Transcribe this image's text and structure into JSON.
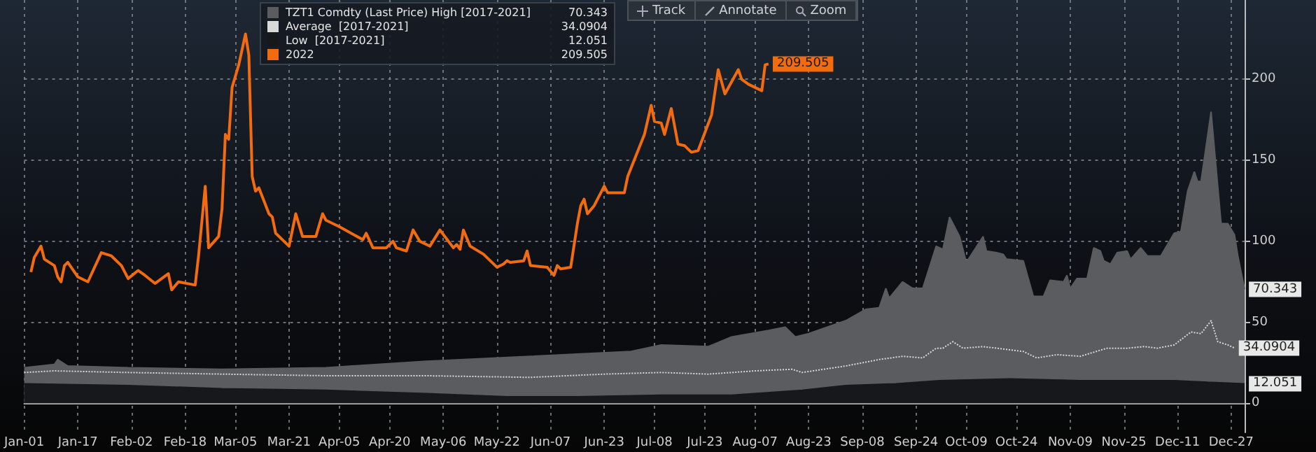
{
  "chart_data": {
    "type": "area",
    "annotations": [
      "Track",
      "Annotate",
      "Zoom"
    ],
    "xlim": [
      "--01-01",
      "--12-31"
    ],
    "xticks": [
      {
        "value": "--01-01",
        "label": "Jan-01"
      },
      {
        "value": "--01-17",
        "label": "Jan-17"
      },
      {
        "value": "--02-02",
        "label": "Feb-02"
      },
      {
        "value": "--02-18",
        "label": "Feb-18"
      },
      {
        "value": "--03-05",
        "label": "Mar-05"
      },
      {
        "value": "--03-21",
        "label": "Mar-21"
      },
      {
        "value": "--04-05",
        "label": "Apr-05"
      },
      {
        "value": "--04-20",
        "label": "Apr-20"
      },
      {
        "value": "--05-06",
        "label": "May-06"
      },
      {
        "value": "--05-22",
        "label": "May-22"
      },
      {
        "value": "--06-07",
        "label": "Jun-07"
      },
      {
        "value": "--06-23",
        "label": "Jun-23"
      },
      {
        "value": "--07-08",
        "label": "Jul-08"
      },
      {
        "value": "--07-23",
        "label": "Jul-23"
      },
      {
        "value": "--08-07",
        "label": "Aug-07"
      },
      {
        "value": "--08-23",
        "label": "Aug-23"
      },
      {
        "value": "--09-08",
        "label": "Sep-08"
      },
      {
        "value": "--09-24",
        "label": "Sep-24"
      },
      {
        "value": "--10-09",
        "label": "Oct-09"
      },
      {
        "value": "--10-24",
        "label": "Oct-24"
      },
      {
        "value": "--11-09",
        "label": "Nov-09"
      },
      {
        "value": "--11-25",
        "label": "Nov-25"
      },
      {
        "value": "--12-11",
        "label": "Dec-11"
      },
      {
        "value": "--12-27",
        "label": "Dec-27"
      }
    ],
    "ylim": [
      -18,
      249
    ],
    "yticks": [
      0,
      50,
      100,
      150,
      200
    ],
    "grid": true,
    "legend": "top left",
    "series": [
      {
        "name": "TZT1 Comdty (Last Price) High [2017-2021]",
        "color": "#5a5c5f",
        "x": [
          "--01-01",
          "--01-10",
          "--01-11",
          "--01-14",
          "--02-01",
          "--03-01",
          "--04-01",
          "--05-01",
          "--06-01",
          "--07-01",
          "--07-10",
          "--07-24",
          "--07-31",
          "--08-11",
          "--08-16",
          "--08-19",
          "--08-23",
          "--09-03",
          "--09-09",
          "--09-13",
          "--09-15",
          "--09-16",
          "--09-20",
          "--09-23",
          "--09-26",
          "--09-30",
          "--10-02",
          "--10-04",
          "--10-07",
          "--10-09",
          "--10-14",
          "--10-15",
          "--10-18",
          "--10-20",
          "--10-21",
          "--10-26",
          "--10-29",
          "--11-01",
          "--11-03",
          "--11-07",
          "--11-08",
          "--11-09",
          "--11-11",
          "--11-14",
          "--11-16",
          "--11-18",
          "--11-19",
          "--11-21",
          "--11-23",
          "--11-26",
          "--11-27",
          "--11-30",
          "--12-02",
          "--12-06",
          "--12-10",
          "--12-12",
          "--12-14",
          "--12-16",
          "--12-17",
          "--12-18",
          "--12-21",
          "--12-23",
          "--12-24",
          "--12-26",
          "--12-28",
          "--12-29",
          "--12-31"
        ],
        "values": [
          22,
          24,
          27,
          23,
          22,
          21,
          22,
          26,
          29,
          32,
          36,
          35,
          41,
          45,
          47,
          41,
          43,
          51,
          58,
          59,
          71,
          65,
          75,
          71,
          71,
          97,
          95,
          115,
          103,
          87,
          103,
          94,
          93,
          92,
          89,
          88,
          66,
          66,
          76,
          75,
          79,
          71,
          77,
          77,
          96,
          94,
          88,
          86,
          93,
          94,
          89,
          96,
          91,
          91,
          105,
          106,
          131,
          143,
          137,
          137,
          180,
          134,
          111,
          111,
          104,
          91,
          70.343
        ],
        "value_labels": [
          null,
          null,
          null,
          null,
          null,
          null,
          null,
          null,
          null,
          null,
          null,
          null,
          null,
          null,
          null,
          null,
          null,
          null,
          null,
          null,
          null,
          null,
          null,
          null,
          null,
          null,
          null,
          null,
          null,
          null,
          null,
          null,
          null,
          null,
          null,
          null,
          null,
          null,
          null,
          null,
          null,
          null,
          null,
          null,
          null,
          null,
          null,
          null,
          null,
          null,
          null,
          null,
          null,
          null,
          null,
          null,
          null,
          null,
          null,
          null,
          null,
          null,
          null,
          null,
          null,
          null,
          "70.343"
        ]
      },
      {
        "name": "Average  [2017-2021]",
        "type": "line",
        "line_style": "dotted",
        "color": "#d9d9d9",
        "x": [
          "--01-01",
          "--01-10",
          "--02-01",
          "--03-01",
          "--04-01",
          "--05-01",
          "--06-01",
          "--06-23",
          "--07-10",
          "--07-24",
          "--08-07",
          "--08-18",
          "--08-21",
          "--09-03",
          "--09-13",
          "--09-20",
          "--09-26",
          "--09-30",
          "--10-02",
          "--10-05",
          "--10-08",
          "--10-14",
          "--10-18",
          "--10-26",
          "--10-30",
          "--11-05",
          "--11-12",
          "--11-20",
          "--11-26",
          "--12-01",
          "--12-05",
          "--12-10",
          "--12-15",
          "--12-18",
          "--12-21",
          "--12-23",
          "--12-26",
          "--12-28"
        ],
        "values": [
          19,
          20,
          19,
          18,
          17,
          17,
          16,
          18,
          19,
          18,
          20,
          21,
          19,
          23,
          27,
          29,
          28,
          34,
          34,
          38,
          34,
          35,
          34,
          32,
          28,
          30,
          29,
          34,
          34,
          35,
          34,
          36,
          44,
          43,
          51,
          38,
          36,
          34.0904
        ],
        "value_labels": [
          null,
          null,
          null,
          null,
          null,
          null,
          null,
          null,
          null,
          null,
          null,
          null,
          null,
          null,
          null,
          null,
          null,
          null,
          null,
          null,
          null,
          null,
          null,
          null,
          null,
          null,
          null,
          null,
          null,
          null,
          null,
          null,
          null,
          null,
          null,
          null,
          null,
          "34.0904"
        ]
      },
      {
        "name": "Low  [2017-2021]",
        "color": "#17181b",
        "x": [
          "--01-01",
          "--02-01",
          "--03-01",
          "--04-01",
          "--05-01",
          "--05-25",
          "--06-15",
          "--07-10",
          "--07-31",
          "--08-21",
          "--09-03",
          "--09-18",
          "--10-01",
          "--10-22",
          "--11-12",
          "--11-26",
          "--12-10",
          "--12-20",
          "--12-31"
        ],
        "values": [
          12,
          11,
          9,
          8,
          6,
          4,
          4,
          5,
          5,
          8,
          11,
          12,
          14,
          15,
          14,
          14,
          14,
          13,
          12.051
        ],
        "value_labels": [
          null,
          null,
          null,
          null,
          null,
          null,
          null,
          null,
          null,
          null,
          null,
          null,
          null,
          null,
          null,
          null,
          null,
          null,
          "12.051"
        ]
      },
      {
        "name": "2022",
        "type": "line",
        "line_style": "solid",
        "color": "#f26b0f",
        "x": [
          "--01-03",
          "--01-04",
          "--01-06",
          "--01-07",
          "--01-10",
          "--01-11",
          "--01-12",
          "--01-13",
          "--01-14",
          "--01-17",
          "--01-20",
          "--01-24",
          "--01-27",
          "--01-30",
          "--02-01",
          "--02-04",
          "--02-06",
          "--02-09",
          "--02-13",
          "--02-14",
          "--02-16",
          "--02-21",
          "--02-22",
          "--02-24",
          "--02-25",
          "--02-28",
          "--03-01",
          "--03-02",
          "--03-03",
          "--03-04",
          "--03-06",
          "--03-08",
          "--03-09",
          "--03-10",
          "--03-11",
          "--03-12",
          "--03-15",
          "--03-16",
          "--03-17",
          "--03-21",
          "--03-23",
          "--03-25",
          "--03-29",
          "--03-31",
          "--04-01",
          "--04-05",
          "--04-12",
          "--04-13",
          "--04-15",
          "--04-19",
          "--04-21",
          "--04-22",
          "--04-25",
          "--04-27",
          "--04-29",
          "--05-02",
          "--05-05",
          "--05-09",
          "--05-10",
          "--05-11",
          "--05-12",
          "--05-14",
          "--05-18",
          "--05-22",
          "--05-24",
          "--05-25",
          "--05-26",
          "--05-30",
          "--05-31",
          "--06-01",
          "--06-06",
          "--06-08",
          "--06-09",
          "--06-10",
          "--06-13",
          "--06-15",
          "--06-16",
          "--06-17",
          "--06-18",
          "--06-20",
          "--06-23",
          "--06-24",
          "--06-29",
          "--06-30",
          "--07-05",
          "--07-07",
          "--07-08",
          "--07-10",
          "--07-11",
          "--07-13",
          "--07-15",
          "--07-17",
          "--07-19",
          "--07-21",
          "--07-25",
          "--07-27",
          "--07-29",
          "--08-02",
          "--08-03",
          "--08-05",
          "--08-09",
          "--08-10",
          "--08-11"
        ],
        "values": [
          81,
          90,
          97,
          89,
          85,
          78,
          75,
          85,
          87,
          78,
          75,
          93,
          91,
          85,
          77,
          82,
          79,
          74,
          80,
          70,
          75,
          73,
          91,
          134,
          96,
          103,
          120,
          166,
          163,
          195,
          209,
          228,
          215,
          140,
          131,
          133,
          117,
          115,
          105,
          97,
          117,
          103,
          103,
          117,
          113,
          109,
          101,
          105,
          96,
          96,
          100,
          96,
          94,
          107,
          100,
          97,
          107,
          96,
          98,
          95,
          107,
          97,
          92,
          84,
          86,
          88,
          87,
          88,
          94,
          85,
          84,
          79,
          85,
          83,
          84,
          111,
          122,
          126,
          117,
          122,
          134,
          130,
          130,
          140,
          166,
          184,
          174,
          173,
          166,
          182,
          160,
          159,
          155,
          156,
          178,
          206,
          191,
          206,
          200,
          197,
          193,
          209,
          209.505
        ],
        "value_labels": [
          null,
          null,
          null,
          null,
          null,
          null,
          null,
          null,
          null,
          null,
          null,
          null,
          null,
          null,
          null,
          null,
          null,
          null,
          null,
          null,
          null,
          null,
          null,
          null,
          null,
          null,
          null,
          null,
          null,
          null,
          null,
          null,
          null,
          null,
          null,
          null,
          null,
          null,
          null,
          null,
          null,
          null,
          null,
          null,
          null,
          null,
          null,
          null,
          null,
          null,
          null,
          null,
          null,
          null,
          null,
          null,
          null,
          null,
          null,
          null,
          null,
          null,
          null,
          null,
          null,
          null,
          null,
          null,
          null,
          null,
          null,
          null,
          null,
          null,
          null,
          null,
          null,
          null,
          null,
          null,
          null,
          null,
          null,
          null,
          null,
          null,
          null,
          null,
          null,
          null,
          null,
          null,
          null,
          null,
          null,
          null,
          null,
          null,
          null,
          null,
          null,
          null,
          "209.505"
        ]
      }
    ]
  }
}
